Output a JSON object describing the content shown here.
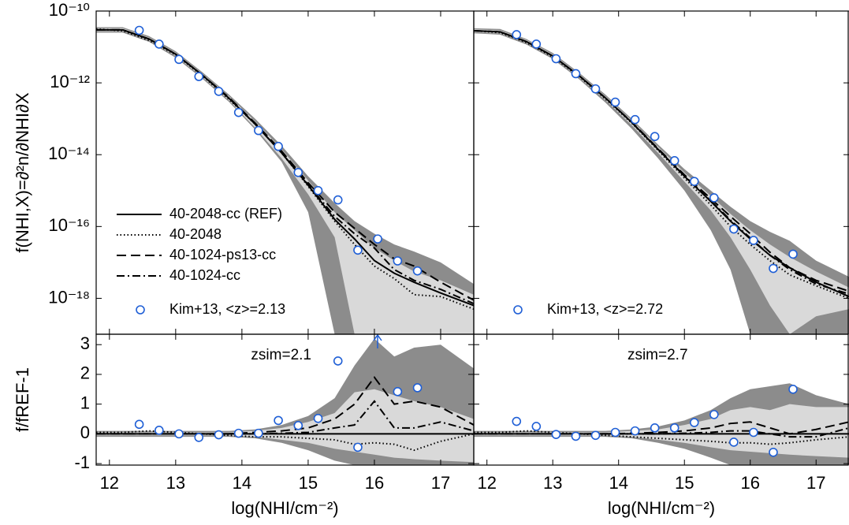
{
  "chart_data": [
    {
      "type": "line",
      "ylog": true,
      "ylabel": "f(NHI,X)=∂²n/∂NHI∂X",
      "xlim": [
        11.8,
        17.5
      ],
      "xticks": [
        12,
        13,
        14,
        15,
        16,
        17
      ],
      "xtick_labels": false,
      "ylim": [
        1e-19,
        1e-10
      ],
      "yticks": [
        {
          "value": 1e-10,
          "label": "10⁻¹⁰"
        },
        {
          "value": 1e-12,
          "label": "10⁻¹²"
        },
        {
          "value": 1e-14,
          "label": "10⁻¹⁴"
        },
        {
          "value": 1e-16,
          "label": "10⁻¹⁶"
        },
        {
          "value": 1e-18,
          "label": "10⁻¹⁸"
        }
      ],
      "ytick_labels": true,
      "grid": false,
      "legend": "lower left",
      "x": [
        11.8,
        12.2,
        12.6,
        13.0,
        13.4,
        13.8,
        14.2,
        14.6,
        15.0,
        15.4,
        15.7,
        16.0,
        16.3,
        16.6,
        17.0,
        17.5
      ],
      "bands": [
        {
          "color": "#8c8c8c",
          "upper": [
            3.55e-11,
            3.55e-11,
            2e-11,
            7.6e-12,
            2e-12,
            4.8e-13,
            1e-13,
            1.78e-14,
            2.51e-15,
            4.5e-16,
            1.41e-16,
            6.3e-17,
            3.16e-17,
            2e-17,
            1e-17,
            2.51e-18
          ],
          "lower": [
            2.51e-11,
            2.51e-11,
            1.38e-11,
            5e-12,
            1.32e-12,
            3e-13,
            5e-14,
            6.3e-15,
            2.51e-16,
            1e-19,
            1e-19,
            1e-19,
            1e-19,
            1e-19,
            1e-19,
            1e-19
          ]
        },
        {
          "color": "#d9d9d9",
          "upper": [
            3.3e-11,
            3.3e-11,
            1.82e-11,
            6.9e-12,
            1.82e-12,
            4.3e-13,
            8.5e-14,
            1.41e-14,
            1.91e-15,
            2.51e-16,
            7.9e-17,
            2.51e-17,
            1.12e-17,
            5.6e-18,
            3.16e-18,
            1.26e-18
          ],
          "lower": [
            2.75e-11,
            2.75e-11,
            1.51e-11,
            5.6e-12,
            1.45e-12,
            3.3e-13,
            5.6e-14,
            7.9e-15,
            7.9e-16,
            5e-17,
            1e-19,
            1e-19,
            1e-19,
            1e-19,
            1e-19,
            1e-19
          ]
        }
      ],
      "series": [
        {
          "name": "40-2048-cc (REF)",
          "color": "#000000",
          "dash": "solid",
          "values": [
            3e-11,
            3e-11,
            1.66e-11,
            6.3e-12,
            1.66e-12,
            3.8e-13,
            7.1e-14,
            1.12e-14,
            1.41e-15,
            1.58e-16,
            4.5e-17,
            1.12e-17,
            5e-18,
            2.8e-18,
            1.41e-18,
            6.3e-19
          ]
        },
        {
          "name": "40-2048",
          "color": "#000000",
          "dash": "dotted",
          "values": [
            3.16e-11,
            2.82e-11,
            1.51e-11,
            6.03e-12,
            1.58e-12,
            3.55e-13,
            7.1e-14,
            1.12e-14,
            1.32e-15,
            1.41e-16,
            3.16e-17,
            7.9e-18,
            3.55e-18,
            1.26e-18,
            1.12e-18,
            5e-19
          ]
        },
        {
          "name": "40-1024-ps13-cc",
          "color": "#000000",
          "dash": "dashed",
          "values": [
            3e-11,
            3e-11,
            1.66e-11,
            6.3e-12,
            1.66e-12,
            3.98e-13,
            7.6e-14,
            1.26e-14,
            1.66e-15,
            2.51e-16,
            8.9e-17,
            3.16e-17,
            1.26e-17,
            7.9e-18,
            2.82e-18,
            8.9e-19
          ]
        },
        {
          "name": "40-1024-cc",
          "color": "#000000",
          "dash": "dashdot",
          "values": [
            3e-11,
            3e-11,
            1.66e-11,
            6.3e-12,
            1.66e-12,
            3.8e-13,
            7.1e-14,
            1.12e-14,
            1.48e-15,
            1.91e-16,
            6.3e-17,
            2.51e-17,
            6.3e-18,
            3.16e-18,
            1.78e-18,
            7.1e-19
          ]
        }
      ],
      "points": {
        "name": "Kim+13, <z>=2.13",
        "color": "#1f5fd6",
        "x": [
          12.45,
          12.75,
          13.05,
          13.35,
          13.65,
          13.95,
          14.25,
          14.55,
          14.85,
          15.15,
          15.45,
          15.75,
          16.05,
          16.35,
          16.65
        ],
        "values": [
          2.9e-11,
          1.2e-11,
          4.5e-12,
          1.5e-12,
          5.8e-13,
          1.5e-13,
          4.7e-14,
          1.7e-14,
          3.2e-15,
          1e-15,
          5.5e-16,
          2.2e-17,
          4.5e-17,
          1.1e-17,
          5.8e-18
        ]
      }
    },
    {
      "type": "line",
      "ylog": true,
      "xlim": [
        11.8,
        17.5
      ],
      "xticks": [
        12,
        13,
        14,
        15,
        16,
        17
      ],
      "xtick_labels": false,
      "ylim": [
        1e-19,
        1e-10
      ],
      "yticks": [
        1e-10,
        1e-12,
        1e-14,
        1e-16,
        1e-18
      ],
      "ytick_labels": false,
      "grid": false,
      "legend": "lower left",
      "x": [
        11.8,
        12.2,
        12.6,
        13.0,
        13.4,
        13.8,
        14.2,
        14.6,
        15.0,
        15.4,
        15.7,
        16.0,
        16.3,
        16.6,
        17.0,
        17.5
      ],
      "bands": [
        {
          "color": "#8c8c8c",
          "upper": [
            3.3e-11,
            3.16e-11,
            1.66e-11,
            6.8e-12,
            1.91e-12,
            4.7e-13,
            1e-13,
            1.91e-14,
            3.98e-15,
            1e-15,
            3.55e-16,
            1.41e-16,
            7.1e-17,
            3.98e-17,
            1.12e-17,
            3.98e-18
          ],
          "lower": [
            2.4e-11,
            2.19e-11,
            1.17e-11,
            4.6e-12,
            1.26e-12,
            2.82e-13,
            5.25e-14,
            7.9e-15,
            1e-15,
            7.9e-17,
            6.3e-18,
            1e-19,
            1e-19,
            1e-19,
            1e-19,
            1e-19
          ]
        },
        {
          "color": "#d9d9d9",
          "upper": [
            3.1e-11,
            2.88e-11,
            1.55e-11,
            6.2e-12,
            1.74e-12,
            4.2e-13,
            8.9e-14,
            1.66e-14,
            3.16e-15,
            7.1e-16,
            2.24e-16,
            7.9e-17,
            3.16e-17,
            1.41e-17,
            5.6e-18,
            2e-18
          ],
          "lower": [
            2.57e-11,
            2.4e-11,
            1.29e-11,
            5.1e-12,
            1.41e-12,
            3.3e-13,
            6.6e-14,
            1.12e-14,
            1.78e-15,
            2.82e-16,
            5e-17,
            6.3e-18,
            6.3e-19,
            1e-19,
            3.16e-19,
            5e-19
          ]
        }
      ],
      "series": [
        {
          "color": "#000000",
          "dash": "solid",
          "values": [
            2.82e-11,
            2.63e-11,
            1.41e-11,
            5.6e-12,
            1.58e-12,
            3.8e-13,
            7.9e-14,
            1.41e-14,
            2.51e-15,
            5e-16,
            1.41e-16,
            4.5e-17,
            1.58e-17,
            7.1e-18,
            2.82e-18,
            1.12e-18
          ]
        },
        {
          "color": "#000000",
          "dash": "dotted",
          "values": [
            2.82e-11,
            2.51e-11,
            1.32e-11,
            5.25e-12,
            1.51e-12,
            3.55e-13,
            7.6e-14,
            1.32e-14,
            2.24e-15,
            3.98e-16,
            1e-16,
            3.16e-17,
            1.12e-17,
            4.5e-18,
            2.24e-18,
            1e-18
          ]
        },
        {
          "color": "#000000",
          "dash": "dashed",
          "values": [
            2.82e-11,
            2.63e-11,
            1.41e-11,
            5.6e-12,
            1.58e-12,
            3.8e-13,
            8.1e-14,
            1.48e-14,
            2.75e-15,
            6e-16,
            1.91e-16,
            6.3e-17,
            1.91e-17,
            7.1e-18,
            3.16e-18,
            1.58e-18
          ]
        },
        {
          "color": "#000000",
          "dash": "dashdot",
          "values": [
            2.82e-11,
            2.63e-11,
            1.41e-11,
            5.6e-12,
            1.58e-12,
            3.8e-13,
            7.9e-14,
            1.41e-14,
            2.57e-15,
            5.25e-16,
            1.51e-16,
            4.8e-17,
            1.58e-17,
            6.3e-18,
            2.51e-18,
            1.32e-18
          ]
        }
      ],
      "points": {
        "name": "Kim+13, <z>=2.72",
        "color": "#1f5fd6",
        "x": [
          12.45,
          12.75,
          13.05,
          13.35,
          13.65,
          13.95,
          14.25,
          14.55,
          14.85,
          15.15,
          15.45,
          15.75,
          16.05,
          16.35,
          16.65
        ],
        "values": [
          2.2e-11,
          1.2e-11,
          4.7e-12,
          1.8e-12,
          6.8e-13,
          2.9e-13,
          9.5e-14,
          3.2e-14,
          6.8e-15,
          1.8e-15,
          6.3e-16,
          8.5e-17,
          4.1e-17,
          6.8e-18,
          1.7e-17
        ]
      }
    },
    {
      "type": "line",
      "ylog": false,
      "ylabel": "f/fREF-1",
      "xlabel": "log(NHI/cm⁻²)",
      "annotation": "zsim=2.1",
      "xlim": [
        11.8,
        17.5
      ],
      "xticks": [
        12,
        13,
        14,
        15,
        16,
        17
      ],
      "xtick_labels": true,
      "ylim": [
        -1.05,
        3.35
      ],
      "yticks": [
        -1,
        0,
        1,
        2,
        3
      ],
      "ytick_labels": true,
      "grid": false,
      "x": [
        11.8,
        12.2,
        12.6,
        13.0,
        13.4,
        13.8,
        14.2,
        14.6,
        15.0,
        15.4,
        15.7,
        16.0,
        16.3,
        16.6,
        17.0,
        17.5
      ],
      "bands": [
        {
          "color": "#8c8c8c",
          "upper": [
            0.1,
            0.1,
            0.1,
            0.1,
            0.1,
            0.1,
            0.15,
            0.3,
            0.6,
            1.2,
            2.3,
            3.2,
            2.6,
            2.9,
            3.0,
            2.2
          ],
          "lower": [
            -0.1,
            -0.1,
            -0.1,
            -0.1,
            -0.1,
            -0.1,
            -0.15,
            -0.3,
            -0.55,
            -0.9,
            -1.05,
            -1.05,
            -1.05,
            -1.05,
            -1.05,
            -1.05
          ]
        },
        {
          "color": "#d9d9d9",
          "upper": [
            0.05,
            0.05,
            0.05,
            0.05,
            0.05,
            0.05,
            0.1,
            0.2,
            0.4,
            0.7,
            1.4,
            1.5,
            1.3,
            1.1,
            0.9,
            0.5
          ],
          "lower": [
            -0.05,
            -0.05,
            -0.05,
            -0.05,
            -0.05,
            -0.05,
            -0.1,
            -0.2,
            -0.3,
            -0.5,
            -0.6,
            -0.7,
            -0.8,
            -0.85,
            -0.9,
            -0.95
          ]
        }
      ],
      "series": [
        {
          "color": "#000000",
          "dash": "solid",
          "values": [
            0,
            0,
            0,
            0,
            0,
            0,
            0,
            0,
            0,
            0,
            0,
            0,
            0,
            0,
            0,
            0
          ]
        },
        {
          "color": "#000000",
          "dash": "dotted",
          "values": [
            0.05,
            0.05,
            0.1,
            0.05,
            0,
            -0.05,
            -0.1,
            -0.1,
            -0.15,
            -0.2,
            -0.35,
            -0.3,
            -0.35,
            -0.55,
            -0.25,
            0
          ]
        },
        {
          "color": "#000000",
          "dash": "dashed",
          "values": [
            0,
            0,
            0,
            0,
            0,
            0,
            0.05,
            0.1,
            0.2,
            0.5,
            1.0,
            1.9,
            1.0,
            1.1,
            0.9,
            0.3
          ]
        },
        {
          "color": "#000000",
          "dash": "dashdot",
          "values": [
            0,
            0,
            0,
            0,
            0,
            0,
            0,
            0.02,
            0.05,
            0.2,
            0.3,
            1.1,
            0.2,
            0.2,
            0.4,
            0.1
          ]
        }
      ],
      "points": {
        "color": "#1f5fd6",
        "x": [
          12.45,
          12.75,
          13.05,
          13.35,
          13.65,
          13.95,
          14.25,
          14.55,
          14.85,
          15.15,
          15.45,
          15.75,
          16.05,
          16.35,
          16.65
        ],
        "values": [
          0.32,
          0.12,
          0.0,
          -0.12,
          -0.03,
          0.02,
          0.02,
          0.45,
          0.28,
          0.52,
          2.45,
          -0.45,
          null,
          1.42,
          1.55
        ]
      }
    },
    {
      "type": "line",
      "ylog": false,
      "xlabel": "log(NHI/cm⁻²)",
      "annotation": "zsim=2.7",
      "xlim": [
        11.8,
        17.5
      ],
      "xticks": [
        12,
        13,
        14,
        15,
        16,
        17
      ],
      "xtick_labels": true,
      "ylim": [
        -1.05,
        3.35
      ],
      "yticks": [
        -1,
        0,
        1,
        2,
        3
      ],
      "ytick_labels": false,
      "grid": false,
      "x": [
        11.8,
        12.2,
        12.6,
        13.0,
        13.4,
        13.8,
        14.2,
        14.6,
        15.0,
        15.4,
        15.7,
        16.0,
        16.3,
        16.6,
        17.0,
        17.5
      ],
      "bands": [
        {
          "color": "#8c8c8c",
          "upper": [
            0.1,
            0.1,
            0.1,
            0.1,
            0.1,
            0.1,
            0.15,
            0.25,
            0.45,
            0.8,
            1.2,
            1.5,
            1.6,
            1.7,
            1.3,
            1.0
          ],
          "lower": [
            -0.1,
            -0.1,
            -0.1,
            -0.1,
            -0.1,
            -0.1,
            -0.15,
            -0.3,
            -0.5,
            -0.8,
            -1.05,
            -1.05,
            -1.05,
            -1.05,
            -1.05,
            -1.05
          ]
        },
        {
          "color": "#d9d9d9",
          "upper": [
            0.05,
            0.05,
            0.05,
            0.05,
            0.05,
            0.05,
            0.1,
            0.15,
            0.3,
            0.5,
            0.8,
            0.9,
            0.8,
            1.0,
            0.9,
            0.9
          ],
          "lower": [
            -0.05,
            -0.05,
            -0.05,
            -0.05,
            -0.05,
            -0.05,
            -0.1,
            -0.2,
            -0.3,
            -0.45,
            -0.55,
            -0.6,
            -0.65,
            -0.7,
            -0.75,
            -0.8
          ]
        }
      ],
      "series": [
        {
          "color": "#000000",
          "dash": "solid",
          "values": [
            0,
            0,
            0,
            0,
            0,
            0,
            0,
            0,
            0,
            0,
            0,
            0,
            0,
            0,
            0,
            0
          ]
        },
        {
          "color": "#000000",
          "dash": "dotted",
          "values": [
            0.05,
            0.05,
            0.1,
            0.05,
            0,
            -0.05,
            -0.1,
            -0.15,
            -0.2,
            -0.25,
            -0.3,
            -0.3,
            -0.35,
            -0.3,
            -0.2,
            -0.1
          ]
        },
        {
          "color": "#000000",
          "dash": "dashed",
          "values": [
            0,
            0,
            0,
            0,
            0,
            0,
            0.02,
            0.05,
            0.1,
            0.2,
            0.35,
            0.4,
            0.2,
            0.0,
            0.15,
            0.4
          ]
        },
        {
          "color": "#000000",
          "dash": "dashdot",
          "values": [
            0,
            0,
            0,
            0,
            0,
            0,
            0,
            0,
            0.02,
            0.05,
            0.1,
            0.1,
            0.0,
            -0.1,
            -0.1,
            0.2
          ]
        }
      ],
      "points": {
        "color": "#1f5fd6",
        "x": [
          12.45,
          12.75,
          13.05,
          13.35,
          13.65,
          13.95,
          14.25,
          14.55,
          14.85,
          15.15,
          15.45,
          15.75,
          16.05,
          16.35,
          16.65
        ],
        "values": [
          0.42,
          0.25,
          -0.02,
          -0.08,
          -0.05,
          0.05,
          0.1,
          0.2,
          0.2,
          0.38,
          0.65,
          -0.28,
          0.05,
          -0.62,
          1.5
        ]
      }
    }
  ]
}
